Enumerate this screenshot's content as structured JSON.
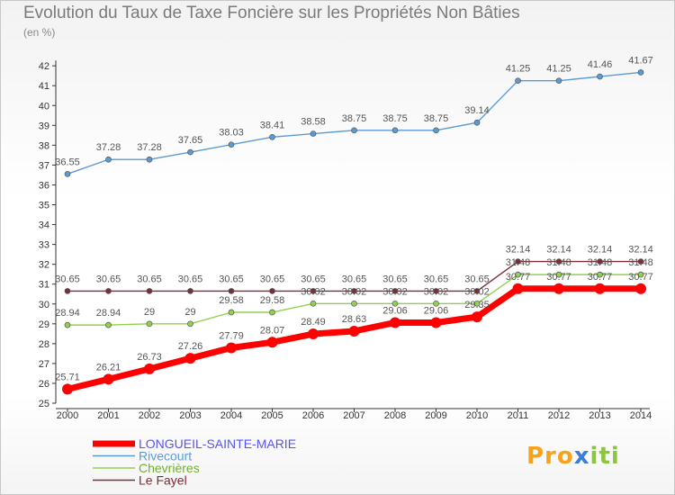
{
  "chart_data": {
    "type": "line",
    "title": "Evolution du Taux de Taxe Foncière sur les Propriétés Non Bâties",
    "ylabel": "(en %)",
    "xlabel": "",
    "x": [
      "2000",
      "2001",
      "2002",
      "2003",
      "2004",
      "2005",
      "2006",
      "2007",
      "2008",
      "2009",
      "2010",
      "2011",
      "2012",
      "2013",
      "2014"
    ],
    "ylim": [
      25,
      42
    ],
    "yticks": [
      25,
      26,
      27,
      28,
      29,
      30,
      31,
      32,
      33,
      34,
      35,
      36,
      37,
      38,
      39,
      40,
      41,
      42
    ],
    "series": [
      {
        "name": "LONGUEIL-SAINTE-MARIE",
        "color": "#ff0000",
        "legend_color": "#5555ee",
        "values": [
          25.71,
          26.21,
          26.73,
          27.26,
          27.79,
          28.07,
          28.49,
          28.63,
          29.06,
          29.06,
          29.35,
          30.77,
          30.77,
          30.77,
          30.77
        ],
        "labels": [
          "25.71",
          "26.21",
          "26.73",
          "27.26",
          "27.79",
          "28.07",
          "28.49",
          "28.63",
          "29.06",
          "29.06",
          "29.35",
          "30.77",
          "30.77",
          "30.77",
          "30.77"
        ],
        "bold": true
      },
      {
        "name": "Rivecourt",
        "color": "#5b9bd5",
        "legend_color": "#5b9bd5",
        "values": [
          36.55,
          37.28,
          37.28,
          37.65,
          38.03,
          38.41,
          38.58,
          38.75,
          38.75,
          38.75,
          39.14,
          41.25,
          41.25,
          41.46,
          41.67
        ],
        "labels": [
          "36.55",
          "37.28",
          "37.28",
          "37.65",
          "38.03",
          "38.41",
          "38.58",
          "38.75",
          "38.75",
          "38.75",
          "39.14",
          "41.25",
          "41.25",
          "41.46",
          "41.67"
        ],
        "bold": false
      },
      {
        "name": "Chevrières",
        "color": "#92d050",
        "legend_color": "#70b030",
        "values": [
          28.94,
          28.94,
          29.0,
          29.0,
          29.58,
          29.58,
          30.02,
          30.02,
          30.02,
          30.02,
          30.02,
          31.48,
          31.48,
          31.48,
          31.48
        ],
        "labels": [
          "28.94",
          "28.94",
          "29",
          "29",
          "29.58",
          "29.58",
          "30.02",
          "30.02",
          "30.02",
          "30.02",
          "30.02",
          "31.48",
          "31.48",
          "31.48",
          "31.48"
        ],
        "bold": false
      },
      {
        "name": "Le Fayel",
        "color": "#7b2e3a",
        "legend_color": "#7b2e3a",
        "values": [
          30.65,
          30.65,
          30.65,
          30.65,
          30.65,
          30.65,
          30.65,
          30.65,
          30.65,
          30.65,
          30.65,
          32.14,
          32.14,
          32.14,
          32.14
        ],
        "labels": [
          "30.65",
          "30.65",
          "30.65",
          "30.65",
          "30.65",
          "30.65",
          "30.65",
          "30.65",
          "30.65",
          "30.65",
          "30.65",
          "32.14",
          "32.14",
          "32.14",
          "32.14"
        ],
        "bold": false
      }
    ],
    "legend_position": "bottom-left",
    "grid": false
  },
  "branding": {
    "logo_text_1": "Pro",
    "logo_text_2": "x",
    "logo_text_3": "iti"
  }
}
